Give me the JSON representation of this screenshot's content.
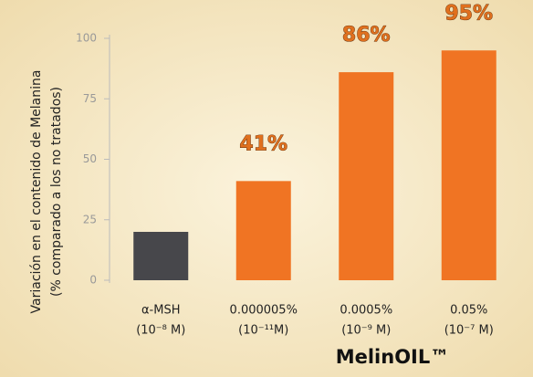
{
  "chart_data": {
    "type": "bar",
    "y_label": [
      "Variación en el contenido de Melanina",
      "(% comparado a los no tratados)"
    ],
    "categories": [
      "α-MSH",
      "0.000005%",
      "0.0005%",
      "0.05%"
    ],
    "sublabels": [
      "(10⁻⁸ M)",
      "(10⁻¹¹M)",
      "(10⁻⁹ M)",
      "(10⁻⁷ M)"
    ],
    "values": [
      20,
      41,
      86,
      95
    ],
    "value_labels": [
      null,
      "41%",
      "86%",
      "95%"
    ],
    "colors": [
      "#47474b",
      "#f07423",
      "#f07423",
      "#f07423"
    ],
    "ylim": [
      0,
      100
    ],
    "yticks": [
      0,
      25,
      50,
      75,
      100
    ],
    "brand": "MelinOIL™"
  }
}
